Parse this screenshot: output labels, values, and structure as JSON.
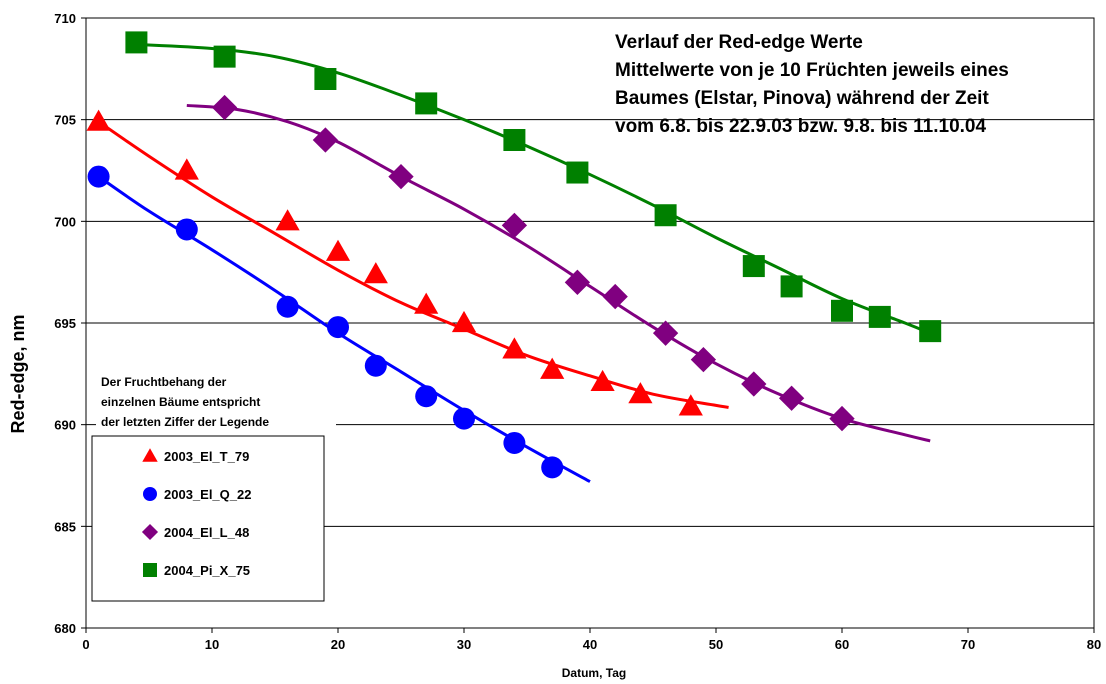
{
  "chart_data": {
    "type": "scatter",
    "title": [
      "Verlauf der Red-edge Werte",
      "Mittelwerte von je 10 Früchten jeweils eines",
      "Baumes (Elstar, Pinova) während der Zeit",
      "vom 6.8. bis 22.9.03 bzw. 9.8. bis 11.10.04"
    ],
    "annotation": [
      "Der Fruchtbehang der",
      "einzelnen Bäume entspricht",
      "der letzten Ziffer der Legende"
    ],
    "xlabel": "Datum, Tag",
    "ylabel": "Red-edge, nm",
    "xlim": [
      0,
      80
    ],
    "ylim": [
      680,
      710
    ],
    "x_ticks": [
      "0",
      "10",
      "20",
      "30",
      "40",
      "50",
      "60",
      "70",
      "80"
    ],
    "y_ticks": [
      "680",
      "685",
      "690",
      "695",
      "700",
      "705",
      "710"
    ],
    "grid": "horizontal",
    "legend_position": "left",
    "series": [
      {
        "name": "2003_El_T_79",
        "marker": "triangle",
        "color": "#ff0000",
        "x": [
          1,
          8,
          16,
          20,
          23,
          27,
          30,
          34,
          37,
          41,
          44,
          48
        ],
        "y": [
          704.9,
          702.5,
          700.0,
          698.5,
          697.4,
          695.9,
          695.0,
          693.7,
          692.7,
          692.1,
          691.5,
          690.9
        ],
        "trend_x": [
          1,
          5,
          10,
          15,
          20,
          25,
          30,
          35,
          40,
          45,
          50,
          51
        ],
        "trend_y": [
          704.9,
          703.2,
          701.2,
          699.4,
          697.6,
          696.0,
          694.7,
          693.4,
          692.4,
          691.5,
          690.95,
          690.85
        ]
      },
      {
        "name": "2003_El_Q_22",
        "marker": "circle",
        "color": "#0000ff",
        "x": [
          1,
          8,
          16,
          20,
          23,
          27,
          30,
          34,
          37
        ],
        "y": [
          702.2,
          699.6,
          695.8,
          694.8,
          692.9,
          691.4,
          690.3,
          689.1,
          687.9
        ],
        "trend_x": [
          1,
          5,
          10,
          15,
          20,
          25,
          30,
          35,
          40
        ],
        "trend_y": [
          702.2,
          700.5,
          698.6,
          696.6,
          694.5,
          692.6,
          690.7,
          688.9,
          687.2
        ]
      },
      {
        "name": "2004_El_L_48",
        "marker": "diamond",
        "color": "#800080",
        "x": [
          11,
          19,
          25,
          34,
          39,
          42,
          46,
          49,
          53,
          56,
          60
        ],
        "y": [
          705.6,
          704.0,
          702.2,
          699.8,
          697.0,
          696.3,
          694.5,
          693.2,
          692.0,
          691.3,
          690.3
        ],
        "trend_x": [
          8,
          12,
          16,
          20,
          25,
          30,
          35,
          40,
          45,
          50,
          55,
          60,
          65,
          67
        ],
        "trend_y": [
          705.7,
          705.5,
          704.9,
          703.9,
          702.2,
          700.6,
          698.8,
          696.8,
          694.8,
          693.0,
          691.5,
          690.3,
          689.5,
          689.2
        ]
      },
      {
        "name": "2004_Pi_X_75",
        "marker": "square",
        "color": "#008000",
        "x": [
          4,
          11,
          19,
          27,
          34,
          39,
          46,
          53,
          56,
          60,
          63,
          67
        ],
        "y": [
          708.8,
          708.1,
          707.0,
          705.8,
          704.0,
          702.4,
          700.3,
          697.8,
          696.8,
          695.6,
          695.3,
          694.6
        ],
        "trend_x": [
          4,
          10,
          15,
          20,
          25,
          30,
          35,
          40,
          45,
          50,
          55,
          60,
          65,
          67
        ],
        "trend_y": [
          708.7,
          708.5,
          708.1,
          707.3,
          706.2,
          705.0,
          703.7,
          702.3,
          700.8,
          699.2,
          697.7,
          696.2,
          695.0,
          694.5
        ]
      }
    ]
  }
}
